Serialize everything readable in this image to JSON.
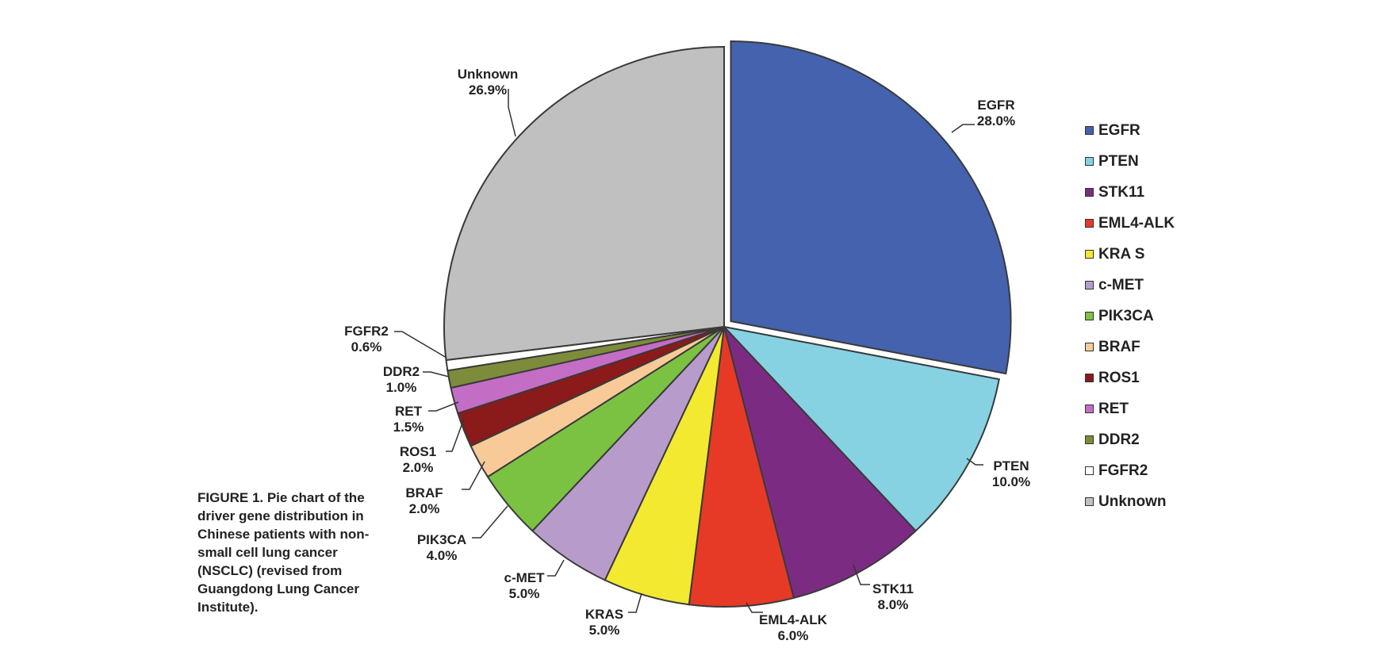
{
  "chart_data": {
    "type": "pie",
    "title": "",
    "categories": [
      "EGFR",
      "PTEN",
      "STK11",
      "EML4-ALK",
      "KRAS",
      "c-MET",
      "PIK3CA",
      "BRAF",
      "ROS1",
      "RET",
      "DDR2",
      "FGFR2",
      "Unknown"
    ],
    "values": [
      28.0,
      10.0,
      8.0,
      6.0,
      5.0,
      5.0,
      4.0,
      2.0,
      2.0,
      1.5,
      1.0,
      0.6,
      26.9
    ],
    "value_labels": [
      "28.0%",
      "10.0%",
      "8.0%",
      "6.0%",
      "5.0%",
      "5.0%",
      "4.0%",
      "2.0%",
      "2.0%",
      "1.5%",
      "1.0%",
      "0.6%",
      "26.9%"
    ],
    "colors": [
      "#4462ad",
      "#86d2e2",
      "#7c2b82",
      "#e63a26",
      "#f3e931",
      "#b79ccb",
      "#7cc242",
      "#f8ca97",
      "#8b1a1a",
      "#c46dc4",
      "#7d8c3a",
      "#ffffff",
      "#c0c0c0"
    ],
    "exploded": [
      "EGFR"
    ],
    "legend": {
      "position": "right",
      "entries": [
        "EGFR",
        "PTEN",
        "STK11",
        "EML4-ALK",
        "KRA S",
        "c-MET",
        "PIK3CA",
        "BRAF",
        "ROS1",
        "RET",
        "DDR2",
        "FGFR2",
        "Unknown"
      ]
    }
  },
  "caption": {
    "text": "FIGURE 1. Pie chart of the driver gene distribution in Chinese patients with non-small cell lung cancer (NSCLC) (revised from Guangdong Lung Cancer Institute)."
  }
}
